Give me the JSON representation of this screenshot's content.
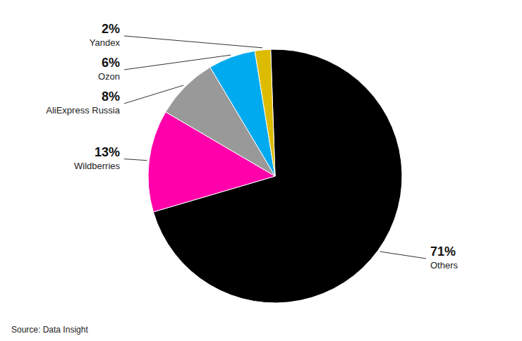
{
  "chart_data": {
    "type": "pie",
    "categories": [
      "Others",
      "Wildberries",
      "AliExpress Russia",
      "Ozon",
      "Yandex"
    ],
    "values": [
      71,
      13,
      8,
      6,
      2
    ],
    "value_labels": [
      "71%",
      "13%",
      "8%",
      "6%",
      "2%"
    ],
    "colors": [
      "#000000",
      "#FF00AA",
      "#999999",
      "#00AAEE",
      "#DDBB00"
    ],
    "data_labels": true,
    "annotations": [
      "Source: Data Insight"
    ]
  }
}
